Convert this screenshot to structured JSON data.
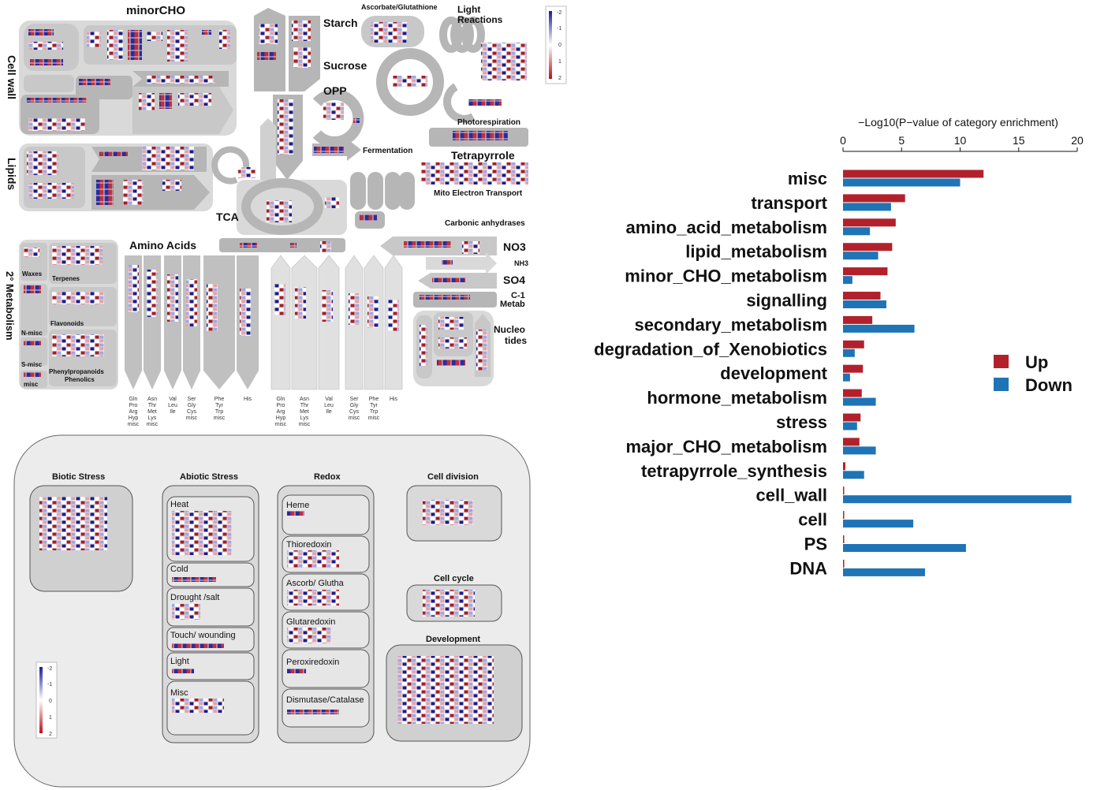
{
  "mapman_overview": {
    "modules": {
      "minor_cho": "minorCHO",
      "cell_wall": "Cell wall",
      "lipids": "Lipids",
      "starch": "Starch",
      "sucrose": "Sucrose",
      "opp": "OPP",
      "ascorbate": "Ascorbate/Glutathione",
      "light_reactions_1": "Light",
      "light_reactions_2": "Reactions",
      "photorespiration": "Photorespiration",
      "fermentation": "Fermentation",
      "tetrapyrrole": "Tetrapyrrole",
      "mito_transport": "Mito Electron Transport",
      "tca": "TCA",
      "carbonic": "Carbonic anhydrases",
      "amino_acids": "Amino Acids",
      "no3": "NO3",
      "nh3": "NH3",
      "so4": "SO4",
      "c1_1": "C-1",
      "c1_2": "Metab",
      "nucleo_1": "Nucleo",
      "nucleo_2": "tides",
      "secondary": "2° Metabolism",
      "waxes": "Waxes",
      "terpenes": "Terpenes",
      "flavonoids": "Flavonoids",
      "nmisc": "N-misc",
      "smisc": "S-misc",
      "misc": "misc",
      "phenyl_1": "Phenylpropanoids",
      "phenyl_2": "Phenolics"
    },
    "aa_labels": [
      [
        "Gln",
        "Pro",
        "Arg",
        "Hyp",
        "misc"
      ],
      [
        "Asn",
        "Thr",
        "Met",
        "Lys",
        "misc"
      ],
      [
        "Val",
        "Leu",
        "Ile"
      ],
      [
        "Ser",
        "Gly",
        "Cys",
        "misc"
      ],
      [
        "Phe",
        "Tyr",
        "Trp",
        "misc"
      ],
      [
        "His"
      ]
    ],
    "legend_ticks": [
      "-2",
      "-1",
      "0",
      "1",
      "2"
    ]
  },
  "stress_overview": {
    "biotic": "Biotic Stress",
    "abiotic": "Abiotic Stress",
    "redox": "Redox",
    "cell_division": "Cell division",
    "cell_cycle": "Cell cycle",
    "development": "Development",
    "abiotic_items": [
      "Heat",
      "Cold",
      "Drought /salt",
      "Touch/ wounding",
      "Light",
      "Misc"
    ],
    "redox_items": [
      "Heme",
      "Thioredoxin",
      "Ascorb/ Glutha",
      "Glutaredoxin",
      "Peroxiredoxin",
      "Dismutase/Catalase"
    ],
    "legend_ticks": [
      "-2",
      "-1",
      "0",
      "1",
      "2"
    ]
  },
  "colors": {
    "up": "#b2212b",
    "down": "#1f74b6",
    "module_gray": "#c8c8c8",
    "module_dark": "#a0a0a0"
  },
  "chart_data": {
    "type": "bar",
    "orientation": "horizontal",
    "xlabel": "−Log10(P−value of category enrichment)",
    "xlim": [
      0,
      20
    ],
    "xticks": [
      0,
      5,
      10,
      15,
      20
    ],
    "categories": [
      "misc",
      "transport",
      "amino_acid_metabolism",
      "lipid_metabolism",
      "minor_CHO_metabolism",
      "signalling",
      "secondary_metabolism",
      "degradation_of_Xenobiotics",
      "development",
      "hormone_metabolism",
      "stress",
      "major_CHO_metabolism",
      "tetrapyrrole_synthesis",
      "cell_wall",
      "cell",
      "PS",
      "DNA"
    ],
    "series": [
      {
        "name": "Up",
        "color": "#b2212b",
        "values": [
          12.0,
          5.3,
          4.5,
          4.2,
          3.8,
          3.2,
          2.5,
          1.8,
          1.7,
          1.6,
          1.5,
          1.4,
          0.2,
          0.05,
          0.05,
          0.05,
          0.05
        ]
      },
      {
        "name": "Down",
        "color": "#1f74b6",
        "values": [
          10.0,
          4.1,
          2.3,
          3.0,
          0.8,
          3.7,
          6.1,
          1.0,
          0.6,
          2.8,
          1.2,
          2.8,
          1.8,
          19.5,
          6.0,
          10.5,
          7.0
        ]
      }
    ],
    "legend_position": "right",
    "grid": false
  }
}
